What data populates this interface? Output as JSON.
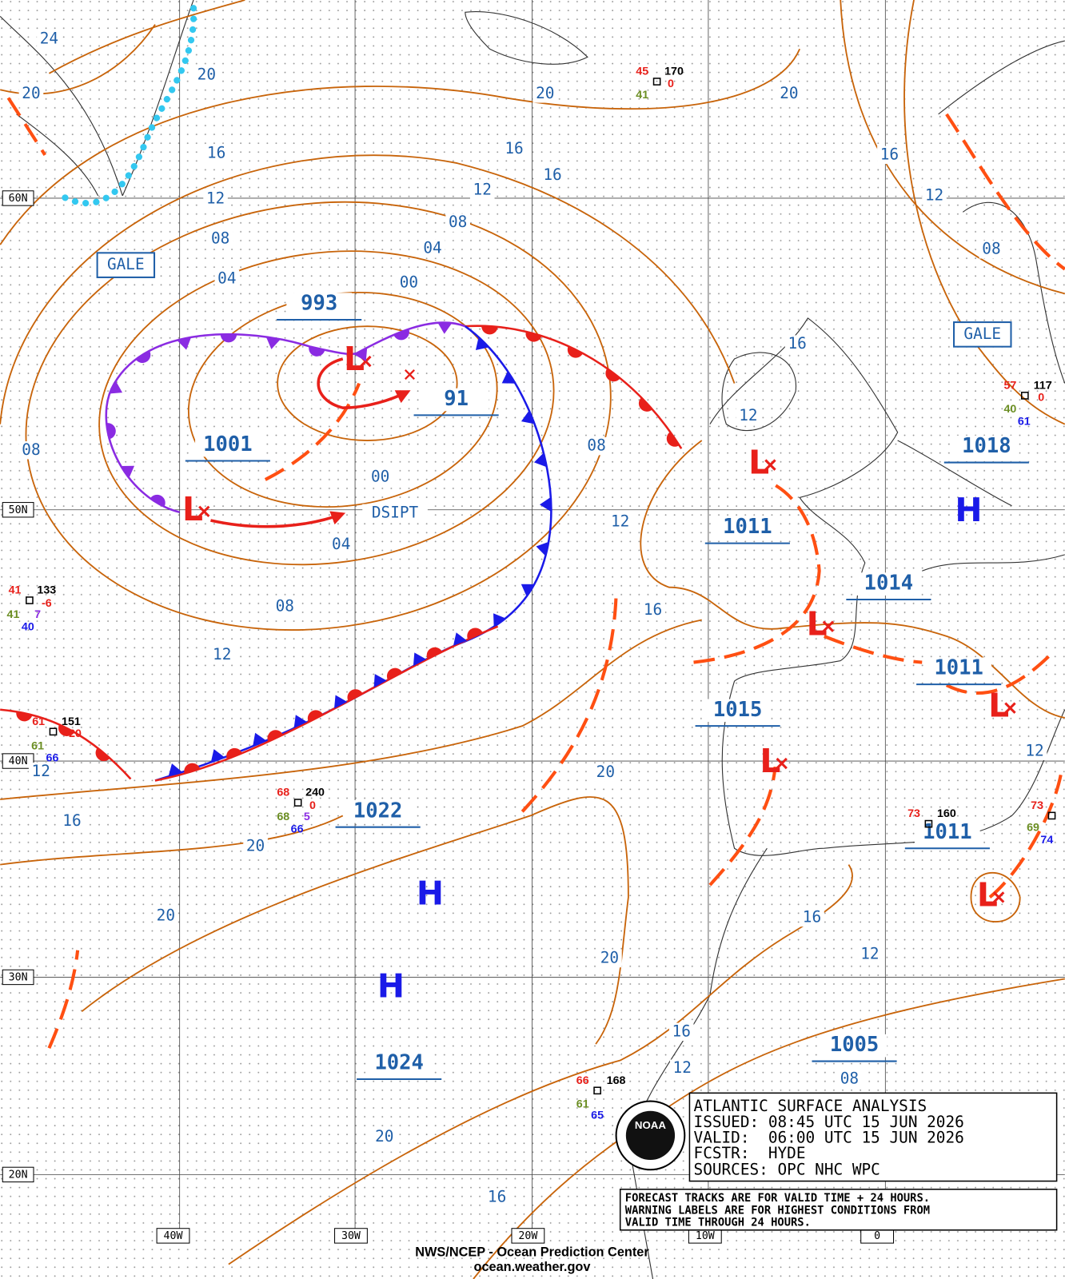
{
  "info_box": {
    "lines": [
      "ATLANTIC SURFACE ANALYSIS",
      "ISSUED: 08:45 UTC 15 JUN 2026",
      "VALID:  06:00 UTC 15 JUN 2026",
      "FCSTR:  HYDE",
      "SOURCES: OPC NHC WPC"
    ]
  },
  "note": {
    "lines": [
      "FORECAST TRACKS ARE FOR VALID TIME + 24 HOURS.",
      "WARNING LABELS ARE FOR HIGHEST CONDITIONS FROM",
      "VALID TIME THROUGH 24 HOURS."
    ]
  },
  "logo": "NOAA",
  "footer": {
    "credit": "NWS/NCEP - Ocean Prediction Center",
    "url": "ocean.weather.gov"
  },
  "grid": {
    "latitudes": [
      "60N",
      "50N",
      "40N",
      "30N",
      "20N"
    ],
    "longitudes": [
      "40W",
      "30W",
      "20W",
      "10W",
      "0"
    ]
  },
  "isobar_labels": [
    "24",
    "20",
    "20",
    "20",
    "20",
    "16",
    "16",
    "16",
    "16",
    "12",
    "12",
    "12",
    "08",
    "08",
    "08",
    "04",
    "04",
    "00",
    "16",
    "12",
    "08",
    "00",
    "08",
    "04",
    "12",
    "08",
    "16",
    "12",
    "12",
    "20",
    "12",
    "16",
    "20",
    "20",
    "20",
    "16",
    "12",
    "16",
    "12",
    "08",
    "20",
    "16"
  ],
  "pressure_centers": [
    "993",
    "1001",
    "91",
    "1011",
    "1014",
    "1011",
    "1015",
    "1022",
    "1011",
    "1018",
    "1005",
    "1024"
  ],
  "highs": [
    "H",
    "H",
    "H"
  ],
  "lows": [
    "L",
    "L",
    "L",
    "L",
    "L",
    "L",
    "L"
  ],
  "warnings": [
    "GALE",
    "GALE"
  ],
  "dissipating": "DSIPT",
  "stations": [
    {
      "values": [
        "45",
        "170",
        "0",
        "41"
      ]
    },
    {
      "values": [
        "57",
        "117",
        "0",
        "40",
        "61"
      ]
    },
    {
      "values": [
        "41",
        "133",
        "-6",
        "41",
        "7",
        "40"
      ]
    },
    {
      "values": [
        "61",
        "151",
        "20",
        "61",
        "66"
      ]
    },
    {
      "values": [
        "68",
        "240",
        "0",
        "68",
        "5",
        "66"
      ]
    },
    {
      "values": [
        "73",
        "160"
      ]
    },
    {
      "values": [
        "73",
        "69",
        "74"
      ]
    },
    {
      "values": [
        "66",
        "168",
        "61",
        "65"
      ]
    }
  ]
}
